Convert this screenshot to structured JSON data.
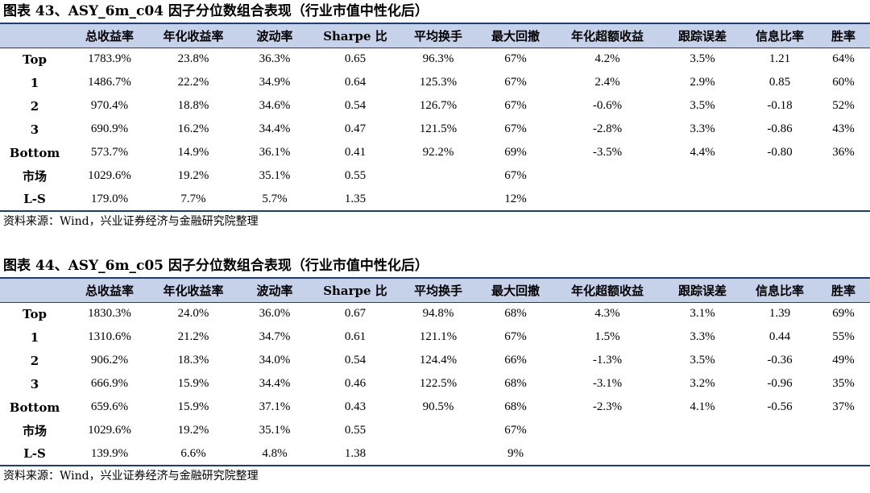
{
  "columns": [
    "",
    "总收益率",
    "年化收益率",
    "波动率",
    "Sharpe 比",
    "平均换手",
    "最大回撤",
    "年化超额收益",
    "跟踪误差",
    "信息比率",
    "胜率"
  ],
  "tables": [
    {
      "title": "图表 43、ASY_6m_c04 因子分位数组合表现（行业市值中性化后）",
      "rows": [
        [
          "Top",
          "1783.9%",
          "23.8%",
          "36.3%",
          "0.65",
          "96.3%",
          "67%",
          "4.2%",
          "3.5%",
          "1.21",
          "64%"
        ],
        [
          "1",
          "1486.7%",
          "22.2%",
          "34.9%",
          "0.64",
          "125.3%",
          "67%",
          "2.4%",
          "2.9%",
          "0.85",
          "60%"
        ],
        [
          "2",
          "970.4%",
          "18.8%",
          "34.6%",
          "0.54",
          "126.7%",
          "67%",
          "-0.6%",
          "3.5%",
          "-0.18",
          "52%"
        ],
        [
          "3",
          "690.9%",
          "16.2%",
          "34.4%",
          "0.47",
          "121.5%",
          "67%",
          "-2.8%",
          "3.3%",
          "-0.86",
          "43%"
        ],
        [
          "Bottom",
          "573.7%",
          "14.9%",
          "36.1%",
          "0.41",
          "92.2%",
          "69%",
          "-3.5%",
          "4.4%",
          "-0.80",
          "36%"
        ],
        [
          "市场",
          "1029.6%",
          "19.2%",
          "35.1%",
          "0.55",
          "",
          "67%",
          "",
          "",
          "",
          ""
        ],
        [
          "L-S",
          "179.0%",
          "7.7%",
          "5.7%",
          "1.35",
          "",
          "12%",
          "",
          "",
          "",
          ""
        ]
      ],
      "source": "资料来源：Wind，兴业证券经济与金融研究院整理"
    },
    {
      "title": "图表 44、ASY_6m_c05 因子分位数组合表现（行业市值中性化后）",
      "rows": [
        [
          "Top",
          "1830.3%",
          "24.0%",
          "36.0%",
          "0.67",
          "94.8%",
          "68%",
          "4.3%",
          "3.1%",
          "1.39",
          "69%"
        ],
        [
          "1",
          "1310.6%",
          "21.2%",
          "34.7%",
          "0.61",
          "121.1%",
          "67%",
          "1.5%",
          "3.3%",
          "0.44",
          "55%"
        ],
        [
          "2",
          "906.2%",
          "18.3%",
          "34.0%",
          "0.54",
          "124.4%",
          "66%",
          "-1.3%",
          "3.5%",
          "-0.36",
          "49%"
        ],
        [
          "3",
          "666.9%",
          "15.9%",
          "34.4%",
          "0.46",
          "122.5%",
          "68%",
          "-3.1%",
          "3.2%",
          "-0.96",
          "35%"
        ],
        [
          "Bottom",
          "659.6%",
          "15.9%",
          "37.1%",
          "0.43",
          "90.5%",
          "68%",
          "-2.3%",
          "4.1%",
          "-0.56",
          "37%"
        ],
        [
          "市场",
          "1029.6%",
          "19.2%",
          "35.1%",
          "0.55",
          "",
          "67%",
          "",
          "",
          "",
          ""
        ],
        [
          "L-S",
          "139.9%",
          "6.6%",
          "4.8%",
          "1.38",
          "",
          "9%",
          "",
          "",
          "",
          ""
        ]
      ],
      "source": "资料来源：Wind，兴业证券经济与金融研究院整理"
    }
  ],
  "colors": {
    "header_bg": "#c6d2ea",
    "rule": "#1f3c78"
  }
}
